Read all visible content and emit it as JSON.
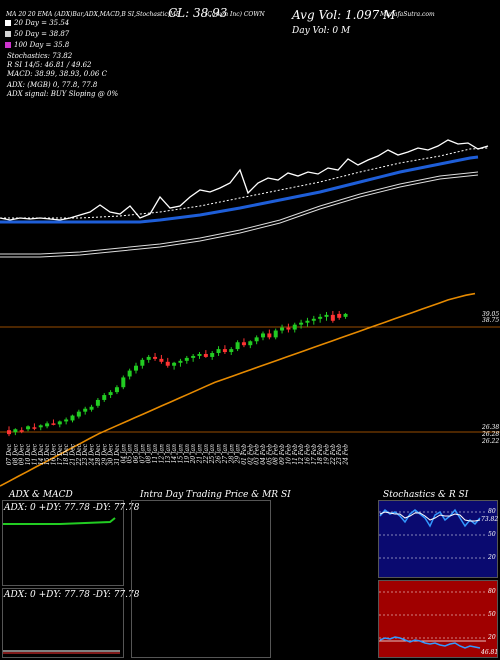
{
  "header": {
    "line1": "MA 20 20 EMA  (ADX)Bar,ADX,MACD,B        SI,Stochastic,MR      ",
    "cl_label": "CL: 38.93",
    "symbol": "(Cowen Inc) COWN",
    "credit": "MunafaSutra.com",
    "avg_vol": "Avg Vol: 1.097 M",
    "day_vol": "Day Vol: 0  M",
    "legend": [
      {
        "label": "20  Day = 35.54",
        "color": "#ffffff"
      },
      {
        "label": "50  Day = 38.87",
        "color": "#d3d3d3"
      },
      {
        "label": "100  Day = 35.8",
        "color": "#cc33cc"
      }
    ],
    "stochastics": "Stochastics: 73.82",
    "rsi": "R          SI 14/5: 46.81 / 49.62",
    "macd": "MACD: 38.99, 38.93, 0.06  C",
    "adx": "ADX:                           (MGB) 0, 77.8,  77.8",
    "adx_signal": "ADX  signal:                          BUY Sloping @ 0%"
  },
  "price_labels": [
    "39.05",
    "38.75",
    "26.38",
    "26.28",
    "26.22"
  ],
  "x_dates": [
    "07 Dec",
    "08 Dec",
    "09 Dec",
    "10 Dec",
    "11 Dec",
    "14 Dec",
    "15 Dec",
    "16 Dec",
    "17 Dec",
    "18 Dec",
    "21 Dec",
    "22 Dec",
    "23 Dec",
    "24 Dec",
    "28 Dec",
    "29 Dec",
    "30 Dec",
    "31 Dec",
    "04 Jan",
    "05 Jan",
    "06 Jan",
    "07 Jan",
    "08 Jan",
    "11 Jan",
    "12 Jan",
    "13 Jan",
    "14 Jan",
    "15 Jan",
    "19 Jan",
    "20 Jan",
    "21 Jan",
    "22 Jan",
    "25 Jan",
    "26 Jan",
    "27 Jan",
    "28 Jan",
    "29 Jan",
    "01 Feb",
    "02 Feb",
    "03 Feb",
    "04 Feb",
    "05 Feb",
    "08 Feb",
    "09 Feb",
    "10 Feb",
    "11 Feb",
    "12 Feb",
    "16 Feb",
    "17 Feb",
    "18 Feb",
    "19 Feb",
    "22 Feb",
    "23 Feb",
    "24 Feb"
  ],
  "panels": {
    "adx_title": "ADX  & MACD",
    "adx_text": "ADX: 0  +DY: 77.78  -DY: 77.78",
    "adx_text2": "ADX: 0  +DY: 77.78  -DY: 77.78",
    "intraday_title": "Intra Day Trading Price  & MR                SI",
    "stoch_title": "Stochastics & R              SI",
    "stoch_levels": [
      "80",
      "50",
      "20"
    ],
    "stoch_value": "73.82",
    "rsi_levels": [
      "80",
      "50",
      "20"
    ],
    "rsi_value": "46.81"
  },
  "chart_data": {
    "type": "candlestick",
    "title": "",
    "ylim": [
      26.0,
      39.3
    ],
    "candles": [
      [
        27.0,
        27.4,
        26.4,
        26.6
      ],
      [
        26.8,
        27.2,
        26.5,
        27.1
      ],
      [
        27.0,
        27.3,
        26.7,
        26.9
      ],
      [
        27.1,
        27.5,
        26.9,
        27.4
      ],
      [
        27.3,
        27.7,
        27.0,
        27.2
      ],
      [
        27.3,
        27.6,
        27.0,
        27.5
      ],
      [
        27.4,
        27.9,
        27.2,
        27.7
      ],
      [
        27.7,
        28.1,
        27.5,
        27.6
      ],
      [
        27.6,
        28.0,
        27.3,
        27.9
      ],
      [
        27.9,
        28.3,
        27.6,
        28.1
      ],
      [
        28.0,
        28.6,
        27.8,
        28.5
      ],
      [
        28.4,
        29.1,
        28.2,
        28.9
      ],
      [
        28.9,
        29.4,
        28.6,
        29.2
      ],
      [
        29.1,
        29.6,
        28.9,
        29.4
      ],
      [
        29.5,
        30.3,
        29.3,
        30.1
      ],
      [
        30.1,
        30.8,
        29.9,
        30.6
      ],
      [
        30.6,
        31.1,
        30.3,
        30.9
      ],
      [
        30.9,
        31.6,
        30.7,
        31.4
      ],
      [
        31.4,
        32.6,
        31.2,
        32.4
      ],
      [
        32.5,
        33.3,
        32.2,
        33.1
      ],
      [
        33.1,
        33.9,
        32.8,
        33.6
      ],
      [
        33.6,
        34.4,
        33.3,
        34.2
      ],
      [
        34.2,
        34.7,
        33.9,
        34.5
      ],
      [
        34.5,
        34.9,
        34.1,
        34.3
      ],
      [
        34.3,
        34.7,
        33.8,
        34.0
      ],
      [
        34.0,
        34.4,
        33.4,
        33.6
      ],
      [
        33.6,
        34.0,
        33.2,
        33.9
      ],
      [
        33.9,
        34.3,
        33.5,
        34.1
      ],
      [
        34.1,
        34.6,
        33.8,
        34.4
      ],
      [
        34.4,
        34.8,
        34.0,
        34.6
      ],
      [
        34.6,
        35.0,
        34.3,
        34.8
      ],
      [
        34.8,
        35.2,
        34.4,
        34.5
      ],
      [
        34.5,
        35.1,
        34.2,
        34.9
      ],
      [
        34.9,
        35.6,
        34.6,
        35.3
      ],
      [
        35.3,
        35.7,
        34.8,
        35.0
      ],
      [
        35.0,
        35.5,
        34.7,
        35.3
      ],
      [
        35.3,
        36.2,
        35.1,
        36.0
      ],
      [
        36.0,
        36.4,
        35.5,
        35.7
      ],
      [
        35.7,
        36.2,
        35.4,
        36.1
      ],
      [
        36.1,
        36.7,
        35.8,
        36.5
      ],
      [
        36.5,
        37.1,
        36.2,
        36.9
      ],
      [
        36.9,
        37.3,
        36.3,
        36.5
      ],
      [
        36.5,
        37.4,
        36.3,
        37.2
      ],
      [
        37.2,
        37.8,
        36.9,
        37.5
      ],
      [
        37.5,
        37.9,
        37.0,
        37.3
      ],
      [
        37.3,
        38.0,
        37.0,
        37.8
      ],
      [
        37.8,
        38.3,
        37.4,
        38.0
      ],
      [
        38.0,
        38.5,
        37.6,
        38.2
      ],
      [
        38.2,
        38.7,
        37.8,
        38.4
      ],
      [
        38.4,
        38.9,
        38.0,
        38.6
      ],
      [
        38.6,
        39.1,
        38.2,
        38.8
      ],
      [
        38.8,
        39.2,
        38.0,
        38.2
      ],
      [
        38.9,
        39.2,
        38.3,
        38.5
      ],
      [
        38.6,
        39.0,
        38.4,
        38.9
      ]
    ],
    "ema_200": [
      16.5,
      17.1,
      17.7,
      18.3,
      18.9,
      19.5,
      20.1,
      20.7,
      21.3,
      21.9,
      22.5,
      23.1,
      23.6,
      24.1,
      24.6,
      25.1,
      25.6,
      26.1,
      26.6,
      27.1,
      27.6,
      28.1,
      28.6,
      29.1,
      29.6,
      30.0,
      30.4,
      30.8,
      31.2,
      31.6,
      32.0,
      32.4,
      32.8,
      33.2,
      33.6,
      34.0,
      34.4,
      34.8,
      35.2,
      35.6,
      36.0,
      36.4,
      36.8,
      37.2,
      37.6,
      38.0,
      38.4,
      38.8,
      39.2,
      39.6,
      40.0,
      40.3,
      40.6,
      40.8
    ]
  }
}
